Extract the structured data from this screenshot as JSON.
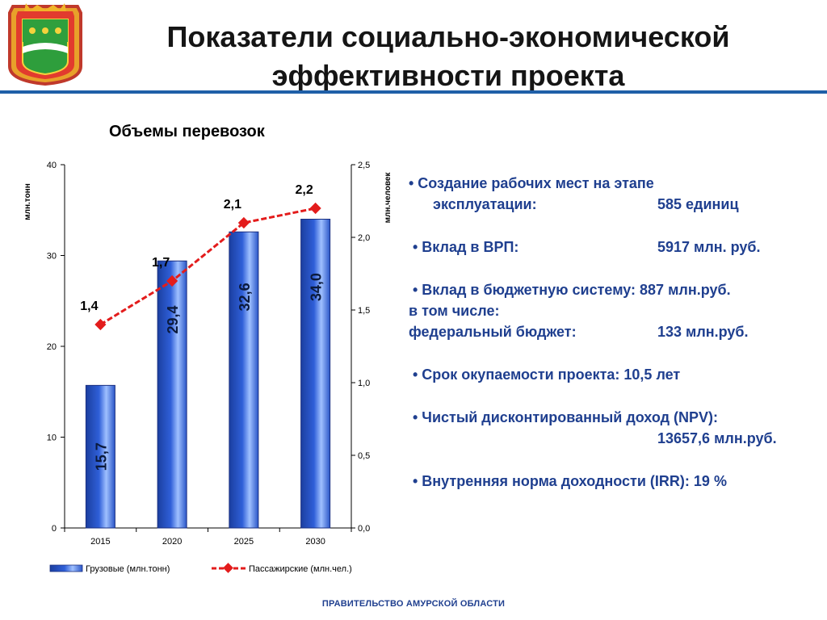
{
  "header": {
    "title_line1": "Показатели социально-экономической",
    "title_line2": "эффективности проекта"
  },
  "colors": {
    "bar_fill": "#2f5fd8",
    "line_color": "#e31c1c",
    "header_rule": "#1f5fa8",
    "bullet_text": "#1f3f8f"
  },
  "chart_data": {
    "type": "bar",
    "title": "Объемы перевозок",
    "categories": [
      "2015",
      "2020",
      "2025",
      "2030"
    ],
    "series": [
      {
        "name": "Грузовые (млн.тонн)",
        "type": "bar",
        "axis": "left",
        "values": [
          15.7,
          29.4,
          32.6,
          34.0
        ],
        "labels": [
          "15,7",
          "29,4",
          "32,6",
          "34,0"
        ]
      },
      {
        "name": "Пассажирские (млн.чел.)",
        "type": "line",
        "axis": "right",
        "values": [
          1.4,
          1.7,
          2.1,
          2.2
        ],
        "labels": [
          "1,4",
          "1,7",
          "2,1",
          "2,2"
        ]
      }
    ],
    "ylabel": "млн.тонн",
    "y2label": "млн.человек",
    "ylim": [
      0,
      40
    ],
    "y2lim": [
      0,
      2.5
    ],
    "yticks": [
      "0",
      "10",
      "20",
      "30",
      "40"
    ],
    "y2ticks": [
      "0,0",
      "0,5",
      "1,0",
      "1,5",
      "2,0",
      "2,5"
    ],
    "legend_position": "bottom",
    "grid": false
  },
  "bullets": {
    "b1_l1": "• Создание рабочих мест  на  этапе",
    "b1_l2": "эксплуатации:",
    "b1_v": "585 единиц",
    "b2": "• Вклад в ВРП:",
    "b2_v": "5917 млн. руб.",
    "b3_l1": "• Вклад в бюджетную систему: 887 млн.руб.",
    "b3_l2": "в том числе:",
    "b3_l3": "федеральный бюджет:",
    "b3_v": "133 млн.руб.",
    "b4": "• Срок окупаемости проекта: 10,5 лет",
    "b5_l1": "• Чистый дисконтированный доход (NPV):",
    "b5_v": "13657,6 млн.руб.",
    "b6": "• Внутренняя норма доходности (IRR):  19 %"
  },
  "footer": {
    "text": "ПРАВИТЕЛЬСТВО АМУРСКОЙ ОБЛАСТИ"
  }
}
